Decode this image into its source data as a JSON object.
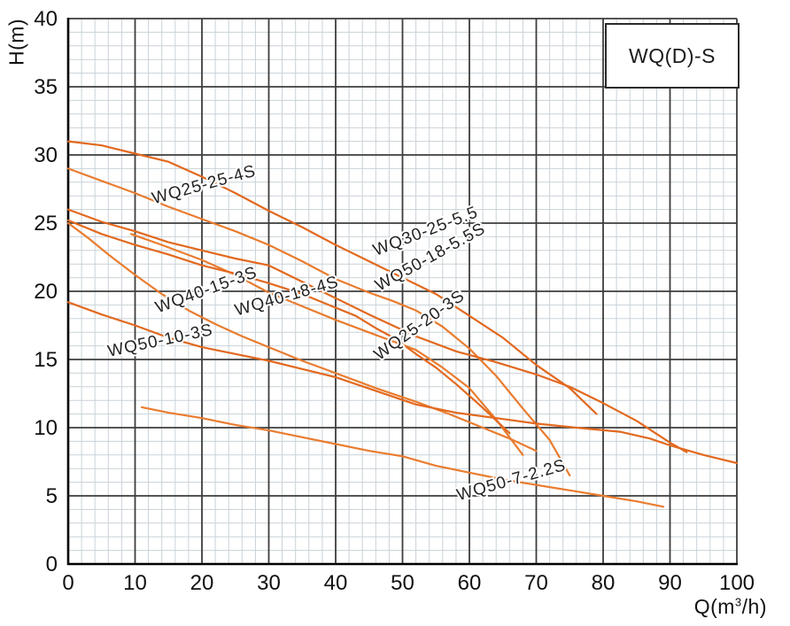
{
  "legend": {
    "label": "WQ(D)-S"
  },
  "axes": {
    "x": {
      "label": "Q(m³/h)",
      "min": 0,
      "max": 100,
      "major_step": 10,
      "minor_step": 2,
      "ticks": [
        "0",
        "10",
        "20",
        "30",
        "40",
        "50",
        "60",
        "70",
        "80",
        "90",
        "100"
      ]
    },
    "y": {
      "label": "H(m)",
      "min": 0,
      "max": 40,
      "major_step": 5,
      "minor_step": 1,
      "ticks": [
        "0",
        "5",
        "10",
        "15",
        "20",
        "25",
        "30",
        "35",
        "40"
      ]
    }
  },
  "colors": {
    "curve": "#e2691f",
    "curve_alt": "#e97c2f",
    "grid_minor": "#c9d2d8",
    "grid_major": "#3d3d3d",
    "axis": "#000000",
    "label_text": "#222222"
  },
  "chart_data": {
    "type": "line",
    "title": "WQ(D)-S submersible pump performance curves",
    "xlabel": "Q(m³/h)",
    "ylabel": "H(m)",
    "xlim": [
      0,
      100
    ],
    "ylim": [
      0,
      40
    ],
    "grid": "major+minor",
    "legend_position": "top-right boxed",
    "series": [
      {
        "name": "WQ30-25-5.5",
        "points": [
          [
            0,
            31
          ],
          [
            5,
            30.7
          ],
          [
            10,
            30.1
          ],
          [
            15,
            29.5
          ],
          [
            20,
            28.4
          ],
          [
            25,
            27.2
          ],
          [
            30,
            25.9
          ],
          [
            35,
            24.7
          ],
          [
            40,
            23.4
          ],
          [
            45,
            22.2
          ],
          [
            50,
            21.0
          ],
          [
            55,
            19.8
          ],
          [
            60,
            18.2
          ],
          [
            65,
            16.6
          ],
          [
            70,
            14.6
          ],
          [
            75,
            12.9
          ],
          [
            79,
            11.0
          ]
        ],
        "label": {
          "q": 46.0,
          "h": 22.6,
          "rot": -21
        }
      },
      {
        "name": "WQ25-25-4S",
        "points": [
          [
            0,
            29
          ],
          [
            5,
            28.1
          ],
          [
            10,
            27.2
          ],
          [
            15,
            26.2
          ],
          [
            20,
            25.3
          ],
          [
            25,
            24.4
          ],
          [
            30,
            23.4
          ],
          [
            35,
            22.2
          ],
          [
            40,
            20.9
          ],
          [
            45,
            19.9
          ],
          [
            48.5,
            19.3
          ],
          [
            52,
            18.6
          ],
          [
            56,
            17.4
          ],
          [
            60,
            15.8
          ],
          [
            64,
            13.8
          ],
          [
            68,
            11.4
          ],
          [
            72,
            9.1
          ],
          [
            75,
            6.5
          ]
        ],
        "label": {
          "q": 12.8,
          "h": 26.4,
          "rot": -15.5
        }
      },
      {
        "name": "WQ50-18-5.5S",
        "points": [
          [
            0,
            26
          ],
          [
            5,
            25.1
          ],
          [
            10,
            24.4
          ],
          [
            15,
            23.6
          ],
          [
            20,
            23.0
          ],
          [
            25,
            22.4
          ],
          [
            30,
            21.9
          ],
          [
            35,
            20.7
          ],
          [
            40,
            19.5
          ],
          [
            45,
            18.3
          ],
          [
            52,
            16.7
          ],
          [
            58,
            15.6
          ],
          [
            64,
            14.8
          ],
          [
            70,
            13.9
          ],
          [
            75,
            13.0
          ],
          [
            80,
            11.8
          ],
          [
            85,
            10.5
          ],
          [
            90,
            8.9
          ],
          [
            92.5,
            8.2
          ]
        ],
        "label": {
          "q": 46.5,
          "h": 20.0,
          "rot": -29
        }
      },
      {
        "name": "WQ40-18-4S",
        "points": [
          [
            9.4,
            24.2
          ],
          [
            14,
            23.4
          ],
          [
            20,
            22.3
          ],
          [
            25,
            21.2
          ],
          [
            30,
            19.9
          ],
          [
            35,
            18.9
          ],
          [
            40,
            17.9
          ],
          [
            46,
            16.8
          ],
          [
            52,
            15.7
          ],
          [
            56,
            14.4
          ],
          [
            60,
            12.9
          ],
          [
            64,
            10.6
          ],
          [
            68,
            8.0
          ]
        ],
        "label": {
          "q": 25.2,
          "h": 18.2,
          "rot": -16
        }
      },
      {
        "name": "WQ25-20-3S",
        "points": [
          [
            0,
            25.2
          ],
          [
            5,
            24.2
          ],
          [
            10,
            23.4
          ],
          [
            15,
            22.7
          ],
          [
            20,
            21.9
          ],
          [
            25,
            21.3
          ],
          [
            30,
            20.6
          ],
          [
            35,
            19.8
          ],
          [
            40,
            18.8
          ],
          [
            43,
            18.2
          ],
          [
            46,
            17.3
          ],
          [
            49,
            16.5
          ],
          [
            52,
            15.4
          ],
          [
            55,
            14.4
          ],
          [
            58,
            13.2
          ],
          [
            61,
            11.9
          ],
          [
            63,
            11.0
          ],
          [
            66,
            9.6
          ]
        ],
        "label": {
          "q": 46.5,
          "h": 14.9,
          "rot": -36
        }
      },
      {
        "name": "WQ40-15-3S",
        "points": [
          [
            0,
            25.0
          ],
          [
            3,
            23.9
          ],
          [
            6,
            22.7
          ],
          [
            10,
            21.2
          ],
          [
            14,
            19.8
          ],
          [
            18,
            18.6
          ],
          [
            22,
            17.6
          ],
          [
            26,
            16.7
          ],
          [
            30,
            15.9
          ],
          [
            35,
            14.9
          ],
          [
            40,
            14.0
          ],
          [
            46,
            12.9
          ],
          [
            52,
            11.9
          ],
          [
            57,
            11.0
          ],
          [
            62,
            10.0
          ],
          [
            66,
            9.2
          ],
          [
            70,
            8.3
          ]
        ],
        "label": {
          "q": 13.4,
          "h": 18.4,
          "rot": -20
        }
      },
      {
        "name": "WQ50-10-3S",
        "points": [
          [
            0,
            19.2
          ],
          [
            5,
            18.3
          ],
          [
            10,
            17.5
          ],
          [
            15,
            16.6
          ],
          [
            20,
            15.9
          ],
          [
            25,
            15.4
          ],
          [
            30,
            14.9
          ],
          [
            35,
            14.3
          ],
          [
            40,
            13.7
          ],
          [
            46,
            12.7
          ],
          [
            52,
            11.7
          ],
          [
            58,
            11.1
          ],
          [
            64,
            10.7
          ],
          [
            70,
            10.3
          ],
          [
            76,
            10.0
          ],
          [
            82.5,
            9.7
          ],
          [
            87,
            9.2
          ],
          [
            90,
            8.7
          ],
          [
            95,
            8.0
          ],
          [
            100,
            7.4
          ]
        ],
        "label": {
          "q": 6.1,
          "h": 15.2,
          "rot": -12
        }
      },
      {
        "name": "WQ50-7-2.2S",
        "points": [
          [
            11,
            11.5
          ],
          [
            15,
            11.1
          ],
          [
            20,
            10.7
          ],
          [
            25,
            10.2
          ],
          [
            30,
            9.8
          ],
          [
            35,
            9.3
          ],
          [
            40,
            8.8
          ],
          [
            45,
            8.3
          ],
          [
            50,
            7.9
          ],
          [
            55,
            7.2
          ],
          [
            60,
            6.7
          ],
          [
            65,
            6.2
          ],
          [
            70,
            5.8
          ],
          [
            75,
            5.4
          ],
          [
            80,
            5.0
          ],
          [
            85,
            4.6
          ],
          [
            89,
            4.2
          ]
        ],
        "label": {
          "q": 58.4,
          "h": 4.65,
          "rot": -16
        }
      }
    ]
  }
}
